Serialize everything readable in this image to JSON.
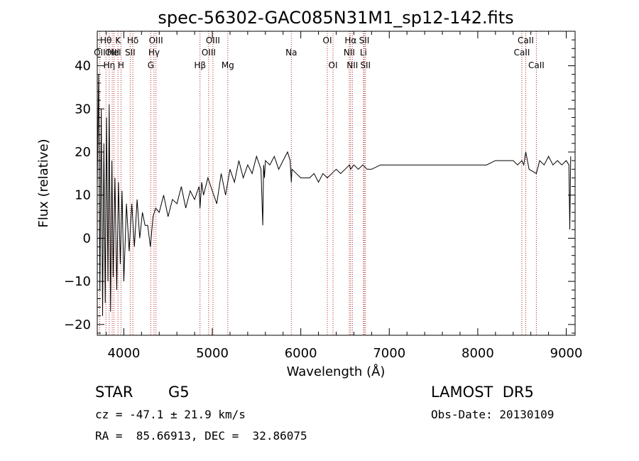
{
  "chart_data": {
    "type": "line",
    "title": "spec-56302-GAC085N31M1_sp12-142.fits",
    "xlabel": "Wavelength (Å)",
    "ylabel": "Flux (relative)",
    "xlim": [
      3700,
      9100
    ],
    "ylim": [
      -22.5,
      48
    ],
    "xticks": [
      4000,
      5000,
      6000,
      7000,
      8000,
      9000
    ],
    "yticks": [
      -20,
      -10,
      0,
      10,
      20,
      30,
      40
    ],
    "grid": false,
    "line_color": "#000000",
    "marker_color": "#b22222",
    "spectral_lines": [
      {
        "label": "Hθ",
        "wavelength": 3798,
        "row": 0
      },
      {
        "label": "OII",
        "wavelength": 3727,
        "row": 1
      },
      {
        "label": "OIII",
        "wavelength": 3869,
        "row": 1
      },
      {
        "label": "Hη",
        "wavelength": 3835,
        "row": 2
      },
      {
        "label": "K",
        "wavelength": 3934,
        "row": 0
      },
      {
        "label": "HeI",
        "wavelength": 3889,
        "row": 1
      },
      {
        "label": "H",
        "wavelength": 3968,
        "row": 2
      },
      {
        "label": "Hδ",
        "wavelength": 4102,
        "row": 0
      },
      {
        "label": "SII",
        "wavelength": 4072,
        "row": 1
      },
      {
        "label": "OIII",
        "wavelength": 4363,
        "row": 0
      },
      {
        "label": "Hγ",
        "wavelength": 4341,
        "row": 1
      },
      {
        "label": "G",
        "wavelength": 4305,
        "row": 2
      },
      {
        "label": "Hβ",
        "wavelength": 4861,
        "row": 2
      },
      {
        "label": "OIII",
        "wavelength": 5007,
        "row": 0
      },
      {
        "label": "OIII",
        "wavelength": 4959,
        "row": 1
      },
      {
        "label": "Mg",
        "wavelength": 5175,
        "row": 2
      },
      {
        "label": "Na",
        "wavelength": 5893,
        "row": 1
      },
      {
        "label": "OI",
        "wavelength": 6300,
        "row": 0
      },
      {
        "label": "OI",
        "wavelength": 6364,
        "row": 2
      },
      {
        "label": "Hα",
        "wavelength": 6563,
        "row": 0
      },
      {
        "label": "NII",
        "wavelength": 6548,
        "row": 1
      },
      {
        "label": "NII",
        "wavelength": 6583,
        "row": 2
      },
      {
        "label": "SII",
        "wavelength": 6717,
        "row": 0
      },
      {
        "label": "Li",
        "wavelength": 6708,
        "row": 1
      },
      {
        "label": "SII",
        "wavelength": 6731,
        "row": 2
      },
      {
        "label": "CaII",
        "wavelength": 8542,
        "row": 0
      },
      {
        "label": "CaII",
        "wavelength": 8498,
        "row": 1
      },
      {
        "label": "CaII",
        "wavelength": 8662,
        "row": 2
      }
    ],
    "series": [
      {
        "x": [
          3700,
          3715,
          3730,
          3745,
          3760,
          3775,
          3790,
          3805,
          3820,
          3835,
          3850,
          3865,
          3880,
          3900,
          3920,
          3940,
          3960,
          3980,
          4000,
          4030,
          4060,
          4090,
          4120,
          4150,
          4180,
          4210,
          4240,
          4270,
          4300,
          4330,
          4360,
          4400,
          4450,
          4500,
          4550,
          4600,
          4650,
          4700,
          4750,
          4800,
          4850,
          4861,
          4880,
          4900,
          4950,
          5000,
          5050,
          5100,
          5150,
          5200,
          5250,
          5300,
          5350,
          5400,
          5450,
          5500,
          5550,
          5570,
          5580,
          5590,
          5600,
          5650,
          5700,
          5750,
          5800,
          5850,
          5880,
          5893,
          5900,
          5950,
          6000,
          6050,
          6100,
          6150,
          6200,
          6250,
          6300,
          6350,
          6400,
          6450,
          6500,
          6550,
          6563,
          6600,
          6650,
          6700,
          6750,
          6800,
          6900,
          7000,
          7100,
          7200,
          7300,
          7400,
          7500,
          7600,
          7700,
          7800,
          7900,
          8000,
          8100,
          8200,
          8300,
          8400,
          8450,
          8498,
          8520,
          8542,
          8580,
          8662,
          8700,
          8750,
          8800,
          8850,
          8900,
          8950,
          9000,
          9030,
          9040,
          9050
        ],
        "y": [
          12,
          38,
          -12,
          30,
          -18,
          22,
          -15,
          28,
          -10,
          31,
          -17,
          18,
          -9,
          14,
          -12,
          13,
          -6,
          11,
          -10,
          8,
          -3,
          8,
          -2,
          9,
          0,
          6,
          3,
          3,
          -2,
          5,
          7,
          6,
          10,
          5,
          9,
          8,
          12,
          7,
          11,
          9,
          12,
          7,
          13,
          10,
          14,
          11,
          8,
          15,
          10,
          16,
          13,
          18,
          14,
          17,
          15,
          19,
          16,
          3,
          17,
          14,
          18,
          17,
          19,
          16,
          18,
          20,
          18,
          13,
          16,
          15,
          14,
          14,
          14,
          15,
          13,
          15,
          14,
          15,
          16,
          15,
          16,
          17,
          16,
          17,
          16,
          17,
          16,
          16,
          17,
          17,
          17,
          17,
          17,
          17,
          17,
          17,
          17,
          17,
          17,
          17,
          17,
          18,
          18,
          18,
          17,
          18,
          17,
          20,
          16,
          15,
          18,
          17,
          19,
          17,
          18,
          17,
          18,
          17,
          2,
          19
        ]
      }
    ]
  },
  "info": {
    "object_type": "STAR",
    "subclass": "G5",
    "survey": "LAMOST  DR5",
    "redshift_line": "cz = -47.1 ± 21.9 km/s",
    "obs_date": "Obs-Date: 20130109",
    "coords": "RA =  85.66913, DEC =  32.86075"
  }
}
